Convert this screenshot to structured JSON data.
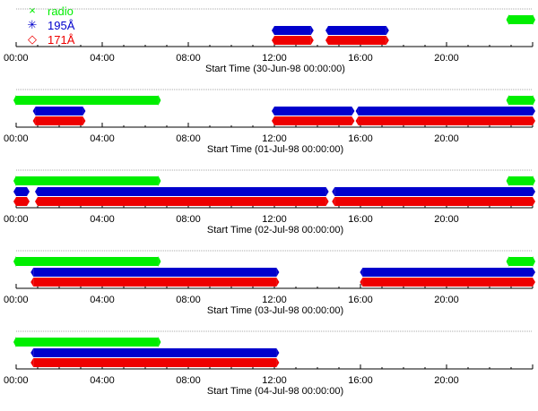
{
  "chart_data": {
    "type": "timeline",
    "legend": {
      "placement": "top-left",
      "items": [
        {
          "key": "radio",
          "label": "radio",
          "symbol": "×",
          "color": "#00ee00"
        },
        {
          "key": "w195",
          "label": "195Å",
          "symbol": "✳",
          "color": "#0000cc"
        },
        {
          "key": "w171",
          "label": "171Å",
          "symbol": "◇",
          "color": "#ee0000"
        }
      ]
    },
    "xlim_hours": [
      0,
      24
    ],
    "tick_labels": [
      "00:00",
      "04:00",
      "08:00",
      "12:00",
      "16:00",
      "20:00"
    ],
    "panels": [
      {
        "xlabel": "Start Time (30-Jun-98 00:00:00)",
        "series": {
          "radio": [
            [
              22.9,
              24
            ]
          ],
          "w195": [
            [
              12.0,
              13.7
            ],
            [
              14.5,
              17.2
            ]
          ],
          "w171": [
            [
              12.0,
              13.7
            ],
            [
              14.5,
              17.2
            ]
          ]
        }
      },
      {
        "xlabel": "Start Time (01-Jul-98 00:00:00)",
        "series": {
          "radio": [
            [
              0,
              6.6
            ],
            [
              22.9,
              24
            ]
          ],
          "w195": [
            [
              0.9,
              3.1
            ],
            [
              12.0,
              15.6
            ],
            [
              15.9,
              24
            ]
          ],
          "w171": [
            [
              0.9,
              3.1
            ],
            [
              12.0,
              15.6
            ],
            [
              15.9,
              24
            ]
          ]
        }
      },
      {
        "xlabel": "Start Time (02-Jul-98 00:00:00)",
        "series": {
          "radio": [
            [
              0,
              6.6
            ],
            [
              22.9,
              24
            ]
          ],
          "w195": [
            [
              0,
              0.5
            ],
            [
              1.0,
              14.4
            ],
            [
              14.8,
              24
            ]
          ],
          "w171": [
            [
              0,
              0.5
            ],
            [
              1.0,
              14.4
            ],
            [
              14.8,
              24
            ]
          ]
        }
      },
      {
        "xlabel": "Start Time (03-Jul-98 00:00:00)",
        "series": {
          "radio": [
            [
              0,
              6.6
            ],
            [
              22.9,
              24
            ]
          ],
          "w195": [
            [
              0.8,
              12.1
            ],
            [
              16.1,
              24
            ]
          ],
          "w171": [
            [
              0.8,
              12.1
            ],
            [
              16.1,
              24
            ]
          ]
        }
      },
      {
        "xlabel": "Start Time (04-Jul-98 00:00:00)",
        "series": {
          "radio": [
            [
              0,
              6.6
            ]
          ],
          "w195": [
            [
              0.8,
              12.1
            ]
          ],
          "w171": [
            [
              0.8,
              12.1
            ]
          ]
        }
      }
    ]
  }
}
